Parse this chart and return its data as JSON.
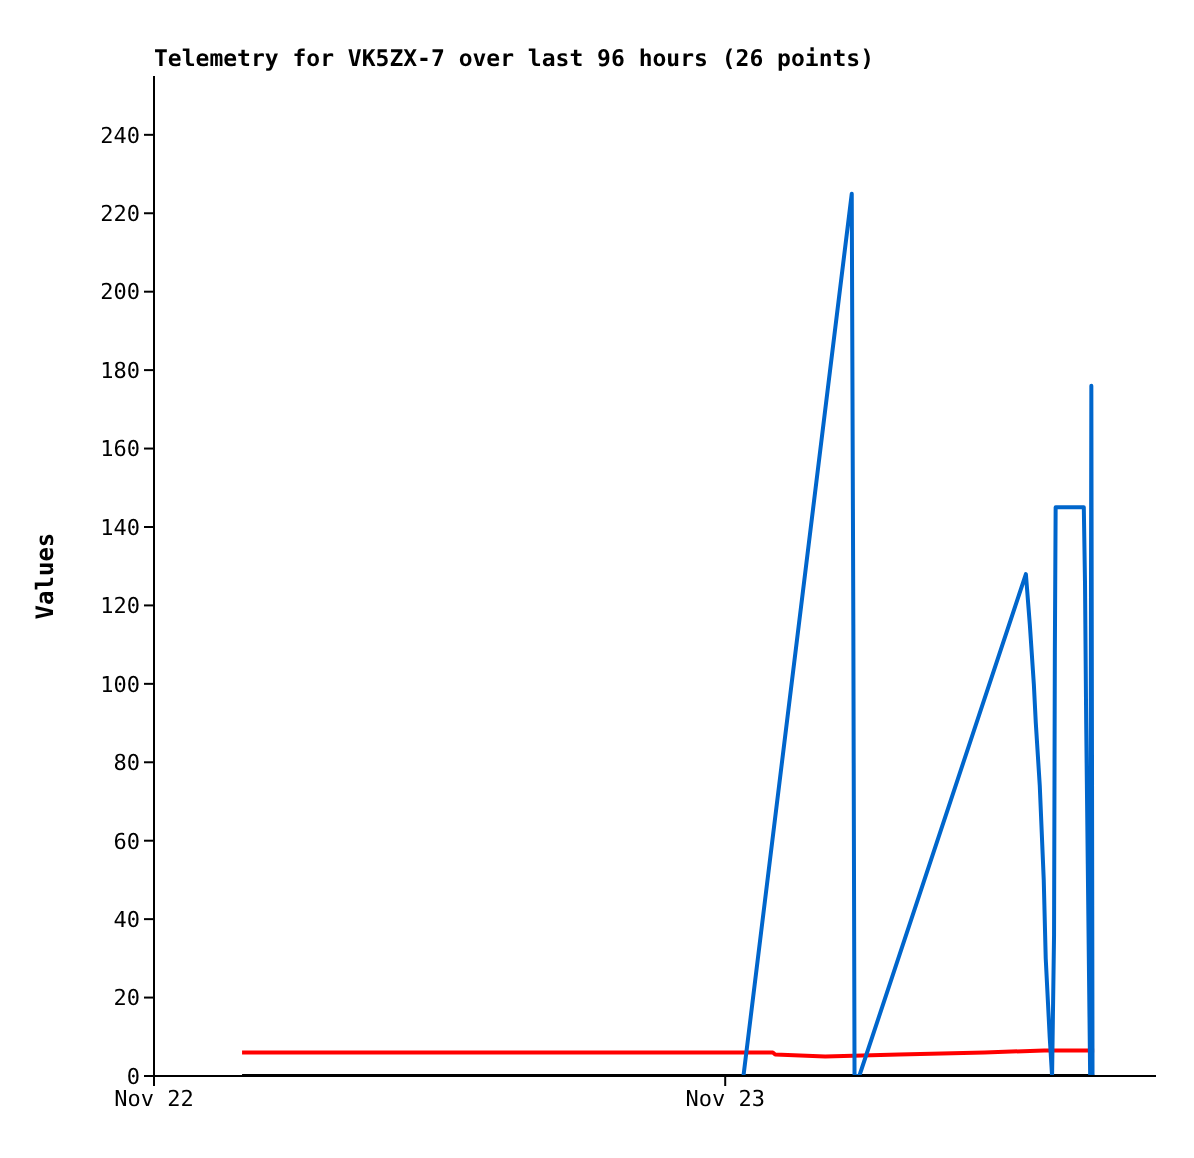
{
  "chart_data": {
    "type": "line",
    "title": "Telemetry for VK5ZX-7 over last 96 hours (26 points)",
    "ylabel": "Values",
    "xlim": [
      "--11-22T00:00",
      "--11-23T18:06"
    ],
    "xticks": [
      {
        "value": "--11-22",
        "label": "Nov 22"
      },
      {
        "value": "--11-23",
        "label": "Nov 23"
      }
    ],
    "ylim": [
      0,
      255
    ],
    "yticks": [
      0,
      20,
      40,
      60,
      80,
      100,
      120,
      140,
      160,
      180,
      200,
      220,
      240
    ],
    "marker": "none",
    "line_style": "solid",
    "series": [
      {
        "color": "#000000",
        "x": [
          "--11-22T03:42",
          "--11-23T15:30"
        ],
        "values": [
          0,
          0
        ]
      },
      {
        "color": "#ff0000",
        "x": [
          "--11-22T03:42",
          "--11-23T02:00",
          "--11-23T02:06",
          "--11-23T04:12",
          "--11-23T07:18",
          "--11-23T10:54",
          "--11-23T13:24",
          "--11-23T15:30"
        ],
        "values": [
          6,
          6,
          5.5,
          5,
          5.5,
          6,
          6.5,
          6.5
        ]
      },
      {
        "color": "#0066cc",
        "x": [
          "--11-23T00:46",
          "--11-23T05:19",
          "--11-23T05:23",
          "--11-23T05:26",
          "--11-23T05:38",
          "--11-23T12:38",
          "--11-23T12:48",
          "--11-23T12:58",
          "--11-23T13:03",
          "--11-23T13:13",
          "--11-23T13:23",
          "--11-23T13:28",
          "--11-23T13:38",
          "--11-23T13:44",
          "--11-23T13:49",
          "--11-23T13:51",
          "--11-23T13:53",
          "--11-23T15:04",
          "--11-23T15:07",
          "--11-23T15:10",
          "--11-23T15:14",
          "--11-23T15:20",
          "--11-23T15:23",
          "--11-23T15:26"
        ],
        "values": [
          0,
          225,
          115,
          0,
          0,
          128,
          115,
          100,
          90,
          74,
          50,
          30,
          10,
          0,
          36,
          108,
          145,
          145,
          126,
          90,
          54,
          0,
          176,
          0
        ]
      }
    ]
  }
}
